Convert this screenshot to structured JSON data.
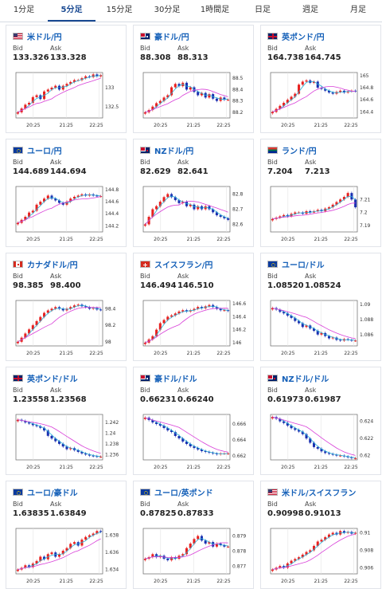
{
  "tabs": [
    {
      "label": "1分足",
      "active": false
    },
    {
      "label": "5分足",
      "active": true
    },
    {
      "label": "15分足",
      "active": false
    },
    {
      "label": "30分足",
      "active": false
    },
    {
      "label": "1時間足",
      "active": false
    },
    {
      "label": "日足",
      "active": false
    },
    {
      "label": "週足",
      "active": false
    },
    {
      "label": "月足",
      "active": false
    }
  ],
  "labels": {
    "bid": "Bid",
    "ask": "Ask"
  },
  "colors": {
    "up": "#e8201f",
    "down": "#1a2fb0",
    "ma_fast": "#29b2d8",
    "ma_slow": "#d83ed8",
    "link": "#1560b8"
  },
  "pairs": [
    {
      "name": "米ドル/円",
      "flag": "us",
      "bid": "133.326",
      "ask": "133.328"
    },
    {
      "name": "豪ドル/円",
      "flag": "au",
      "bid": "88.308",
      "ask": "88.313"
    },
    {
      "name": "英ポンド/円",
      "flag": "gb",
      "bid": "164.738",
      "ask": "164.745"
    },
    {
      "name": "ユーロ/円",
      "flag": "eu",
      "bid": "144.689",
      "ask": "144.694"
    },
    {
      "name": "NZドル/円",
      "flag": "nz",
      "bid": "82.629",
      "ask": "82.641"
    },
    {
      "name": "ランド/円",
      "flag": "za",
      "bid": "7.204",
      "ask": "7.213"
    },
    {
      "name": "カナダドル/円",
      "flag": "ca",
      "bid": "98.385",
      "ask": "98.400"
    },
    {
      "name": "スイスフラン/円",
      "flag": "ch",
      "bid": "146.494",
      "ask": "146.510"
    },
    {
      "name": "ユーロ/ドル",
      "flag": "eu",
      "bid": "1.08520",
      "ask": "1.08524"
    },
    {
      "name": "英ポンド/ドル",
      "flag": "gb",
      "bid": "1.23558",
      "ask": "1.23568"
    },
    {
      "name": "豪ドル/ドル",
      "flag": "au",
      "bid": "0.66231",
      "ask": "0.66240"
    },
    {
      "name": "NZドル/ドル",
      "flag": "nz",
      "bid": "0.61973",
      "ask": "0.61987"
    },
    {
      "name": "ユーロ/豪ドル",
      "flag": "eu",
      "bid": "1.63835",
      "ask": "1.63849"
    },
    {
      "name": "ユーロ/英ポンド",
      "flag": "eu",
      "bid": "0.87825",
      "ask": "0.87833"
    },
    {
      "name": "米ドル/スイスフラン",
      "flag": "us",
      "bid": "0.90998",
      "ask": "0.91013"
    }
  ],
  "chart_data": [
    {
      "type": "candlestick",
      "pair": "米ドル/円",
      "x_ticks": [
        "20:25",
        "21:25",
        "22:25"
      ],
      "y_ticks": [
        133,
        132.5
      ],
      "ylim": [
        132.2,
        133.4
      ],
      "close": [
        132.35,
        132.45,
        132.55,
        132.6,
        132.75,
        132.8,
        132.7,
        132.9,
        132.95,
        133.0,
        133.05,
        132.95,
        133.05,
        133.1,
        133.15,
        133.2,
        133.2,
        133.25,
        133.3,
        133.28,
        133.35,
        133.3,
        133.33
      ]
    },
    {
      "type": "candlestick",
      "pair": "豪ドル/円",
      "x_ticks": [
        "20:25",
        "21:25",
        "22:25"
      ],
      "y_ticks": [
        88.5,
        88.4,
        88.3,
        88.2
      ],
      "ylim": [
        88.15,
        88.55
      ],
      "close": [
        88.2,
        88.22,
        88.25,
        88.28,
        88.3,
        88.33,
        88.35,
        88.42,
        88.45,
        88.43,
        88.46,
        88.4,
        88.42,
        88.38,
        88.35,
        88.37,
        88.33,
        88.36,
        88.32,
        88.3,
        88.33,
        88.31,
        88.31
      ]
    },
    {
      "type": "candlestick",
      "pair": "英ポンド/円",
      "x_ticks": [
        "20:25",
        "21:25",
        "22:25"
      ],
      "y_ticks": [
        165,
        164.8,
        164.6,
        164.4
      ],
      "ylim": [
        164.3,
        165.05
      ],
      "close": [
        164.4,
        164.45,
        164.5,
        164.55,
        164.6,
        164.65,
        164.7,
        164.85,
        164.9,
        164.92,
        164.88,
        164.9,
        164.8,
        164.78,
        164.75,
        164.72,
        164.7,
        164.73,
        164.75,
        164.72,
        164.74,
        164.75,
        164.74
      ]
    },
    {
      "type": "candlestick",
      "pair": "ユーロ/円",
      "x_ticks": [
        "20:25",
        "21:25",
        "22:25"
      ],
      "y_ticks": [
        144.8,
        144.6,
        144.4,
        144.2
      ],
      "ylim": [
        144.1,
        144.85
      ],
      "close": [
        144.25,
        144.3,
        144.35,
        144.42,
        144.45,
        144.55,
        144.6,
        144.65,
        144.7,
        144.65,
        144.62,
        144.58,
        144.55,
        144.6,
        144.65,
        144.68,
        144.7,
        144.72,
        144.7,
        144.72,
        144.7,
        144.69,
        144.69
      ]
    },
    {
      "type": "candlestick",
      "pair": "NZドル/円",
      "x_ticks": [
        "20:25",
        "21:25",
        "22:25"
      ],
      "y_ticks": [
        82.8,
        82.7,
        82.6
      ],
      "ylim": [
        82.55,
        82.85
      ],
      "close": [
        82.6,
        82.65,
        82.7,
        82.72,
        82.75,
        82.78,
        82.8,
        82.78,
        82.76,
        82.74,
        82.75,
        82.72,
        82.73,
        82.7,
        82.72,
        82.7,
        82.72,
        82.7,
        82.68,
        82.66,
        82.65,
        82.64,
        82.63
      ]
    },
    {
      "type": "candlestick",
      "pair": "ランド/円",
      "x_ticks": [
        "20:25",
        "21:25",
        "22:25"
      ],
      "y_ticks": [
        7.21,
        7.2,
        7.19
      ],
      "ylim": [
        7.185,
        7.22
      ],
      "close": [
        7.195,
        7.196,
        7.197,
        7.198,
        7.197,
        7.199,
        7.2,
        7.2,
        7.199,
        7.201,
        7.2,
        7.201,
        7.202,
        7.201,
        7.203,
        7.204,
        7.206,
        7.208,
        7.21,
        7.212,
        7.215,
        7.21,
        7.204
      ]
    },
    {
      "type": "candlestick",
      "pair": "カナダドル/円",
      "x_ticks": [
        "20:25",
        "21:25",
        "22:25"
      ],
      "y_ticks": [
        98.4,
        98.2,
        98
      ],
      "ylim": [
        97.95,
        98.5
      ],
      "close": [
        98.0,
        98.05,
        98.1,
        98.15,
        98.2,
        98.25,
        98.3,
        98.35,
        98.38,
        98.4,
        98.42,
        98.4,
        98.38,
        98.4,
        98.42,
        98.44,
        98.45,
        98.43,
        98.42,
        98.4,
        98.41,
        98.39,
        98.385
      ]
    },
    {
      "type": "candlestick",
      "pair": "スイスフラン/円",
      "x_ticks": [
        "20:25",
        "21:25",
        "22:25"
      ],
      "y_ticks": [
        146.6,
        146.4,
        146.2,
        146
      ],
      "ylim": [
        145.95,
        146.65
      ],
      "close": [
        146.0,
        146.05,
        146.1,
        146.2,
        146.3,
        146.35,
        146.4,
        146.42,
        146.45,
        146.48,
        146.5,
        146.48,
        146.5,
        146.52,
        146.55,
        146.53,
        146.56,
        146.58,
        146.55,
        146.52,
        146.5,
        146.5,
        146.49
      ]
    },
    {
      "type": "candlestick",
      "pair": "ユーロ/ドル",
      "x_ticks": [
        "20:25",
        "21:25",
        "22:25"
      ],
      "y_ticks": [
        1.09,
        1.088,
        1.086
      ],
      "ylim": [
        1.0845,
        1.0905
      ],
      "close": [
        1.0895,
        1.0893,
        1.089,
        1.0888,
        1.0885,
        1.0882,
        1.0878,
        1.0875,
        1.087,
        1.0872,
        1.0868,
        1.0865,
        1.086,
        1.0862,
        1.0858,
        1.0855,
        1.0856,
        1.0853,
        1.0852,
        1.0854,
        1.0853,
        1.0852,
        1.0852
      ]
    },
    {
      "type": "candlestick",
      "pair": "英ポンド/ドル",
      "x_ticks": [
        "20:25",
        "21:25",
        "22:25"
      ],
      "y_ticks": [
        1.242,
        1.24,
        1.238,
        1.236
      ],
      "ylim": [
        1.235,
        1.2435
      ],
      "close": [
        1.2425,
        1.2423,
        1.242,
        1.2418,
        1.2415,
        1.2413,
        1.241,
        1.2405,
        1.2395,
        1.239,
        1.2385,
        1.238,
        1.2375,
        1.237,
        1.2372,
        1.2368,
        1.2365,
        1.2362,
        1.236,
        1.2358,
        1.2357,
        1.2356,
        1.2356
      ]
    },
    {
      "type": "candlestick",
      "pair": "豪ドル/ドル",
      "x_ticks": [
        "20:25",
        "21:25",
        "22:25"
      ],
      "y_ticks": [
        0.666,
        0.664,
        0.662
      ],
      "ylim": [
        0.6615,
        0.6672
      ],
      "close": [
        0.6668,
        0.6665,
        0.6662,
        0.666,
        0.6658,
        0.6655,
        0.6652,
        0.665,
        0.6645,
        0.6642,
        0.6638,
        0.6635,
        0.6632,
        0.663,
        0.6628,
        0.6626,
        0.6625,
        0.6624,
        0.6623,
        0.6622,
        0.6623,
        0.6623,
        0.6623
      ]
    },
    {
      "type": "candlestick",
      "pair": "NZドル/ドル",
      "x_ticks": [
        "20:25",
        "21:25",
        "22:25"
      ],
      "y_ticks": [
        0.624,
        0.622,
        0.62
      ],
      "ylim": [
        0.6195,
        0.6248
      ],
      "close": [
        0.6245,
        0.6243,
        0.624,
        0.6238,
        0.6235,
        0.6232,
        0.623,
        0.6228,
        0.6225,
        0.622,
        0.6215,
        0.621,
        0.6208,
        0.6205,
        0.6203,
        0.6202,
        0.6201,
        0.62,
        0.62,
        0.6199,
        0.6198,
        0.6197,
        0.6197
      ]
    },
    {
      "type": "candlestick",
      "pair": "ユーロ/豪ドル",
      "x_ticks": [
        "20:25",
        "21:25",
        "22:25"
      ],
      "y_ticks": [
        1.638,
        1.636,
        1.634
      ],
      "ylim": [
        1.6335,
        1.6388
      ],
      "close": [
        1.634,
        1.6342,
        1.6345,
        1.6343,
        1.6347,
        1.635,
        1.6355,
        1.6352,
        1.6358,
        1.636,
        1.6355,
        1.6358,
        1.6362,
        1.6365,
        1.637,
        1.6372,
        1.6368,
        1.6375,
        1.6378,
        1.638,
        1.6382,
        1.6385,
        1.6384
      ]
    },
    {
      "type": "candlestick",
      "pair": "ユーロ/英ポンド",
      "x_ticks": [
        "20:25",
        "21:25",
        "22:25"
      ],
      "y_ticks": [
        0.879,
        0.878,
        0.877
      ],
      "ylim": [
        0.8765,
        0.8795
      ],
      "close": [
        0.8775,
        0.8776,
        0.8778,
        0.8776,
        0.8777,
        0.8775,
        0.8774,
        0.8776,
        0.8775,
        0.8777,
        0.8778,
        0.8782,
        0.8785,
        0.8788,
        0.879,
        0.8787,
        0.8785,
        0.8786,
        0.8783,
        0.8785,
        0.8784,
        0.8783,
        0.8783
      ]
    },
    {
      "type": "candlestick",
      "pair": "米ドル/スイスフラン",
      "x_ticks": [
        "20:25",
        "21:25",
        "22:25"
      ],
      "y_ticks": [
        0.91,
        0.908,
        0.906
      ],
      "ylim": [
        0.9053,
        0.9105
      ],
      "close": [
        0.9058,
        0.906,
        0.9062,
        0.906,
        0.9065,
        0.9068,
        0.907,
        0.9072,
        0.9075,
        0.9078,
        0.908,
        0.9085,
        0.909,
        0.9092,
        0.9095,
        0.9098,
        0.91,
        0.9098,
        0.9102,
        0.91,
        0.9101,
        0.9099,
        0.91
      ]
    }
  ]
}
